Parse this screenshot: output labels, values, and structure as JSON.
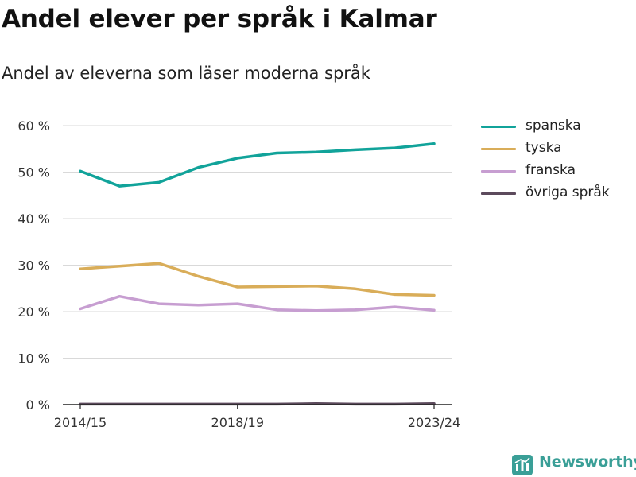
{
  "title": "Andel elever per språk i Kalmar",
  "subtitle": "Andel av eleverna som läser moderna språk",
  "brand": "Newsworthy",
  "colors": {
    "spanska": "#11a39a",
    "tyska": "#d9ad59",
    "franska": "#c79ed1",
    "ovriga": "#5c4a5c",
    "grid": "#d9d9d9",
    "axis": "#222222",
    "brand": "#3a9f97"
  },
  "chart_data": {
    "type": "line",
    "x_tick_labels": [
      "2014/15",
      "2018/19",
      "2023/24"
    ],
    "y_tick_labels": [
      "0 %",
      "10 %",
      "20 %",
      "30 %",
      "40 %",
      "50 %",
      "60 %"
    ],
    "ylim": [
      0,
      60
    ],
    "y_ticks": [
      0,
      10,
      20,
      30,
      40,
      50,
      60
    ],
    "grid": true,
    "legend_position": "right",
    "x": [
      "2014/15",
      "2015/16",
      "2016/17",
      "2017/18",
      "2018/19",
      "2019/20",
      "2020/21",
      "2021/22",
      "2022/23",
      "2023/24"
    ],
    "series": [
      {
        "name": "spanska",
        "color": "#11a39a",
        "values": [
          50.2,
          47.0,
          47.8,
          51.0,
          53.0,
          54.1,
          54.3,
          54.8,
          55.2,
          56.1
        ]
      },
      {
        "name": "tyska",
        "color": "#d9ad59",
        "values": [
          29.2,
          29.8,
          30.4,
          27.6,
          25.3,
          25.4,
          25.5,
          24.9,
          23.7,
          23.5
        ]
      },
      {
        "name": "franska",
        "color": "#c79ed1",
        "values": [
          20.6,
          23.3,
          21.7,
          21.4,
          21.7,
          20.4,
          20.2,
          20.4,
          21.0,
          20.3
        ]
      },
      {
        "name": "övriga språk",
        "color": "#5c4a5c",
        "values": [
          0.1,
          0.1,
          0.1,
          0.1,
          0.1,
          0.1,
          0.2,
          0.1,
          0.1,
          0.2
        ]
      }
    ]
  }
}
